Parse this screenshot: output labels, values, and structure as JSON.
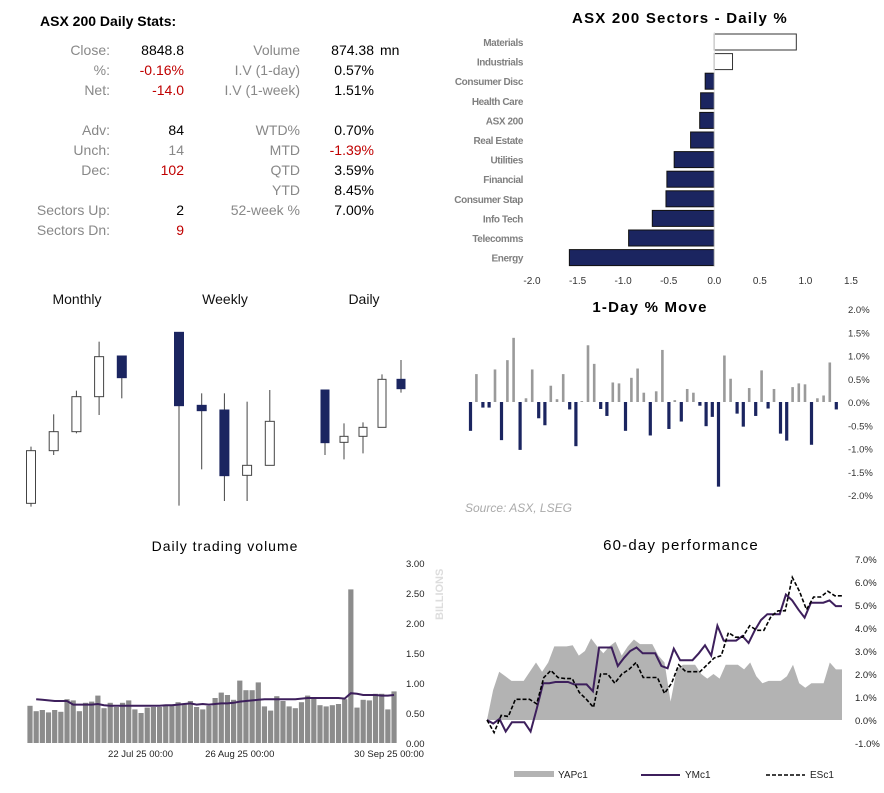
{
  "stats": {
    "title": "ASX 200 Daily Stats:",
    "left": [
      {
        "label": "Close:",
        "value": "8848.8",
        "tone": "normal"
      },
      {
        "label": "%:",
        "value": "-0.16%",
        "tone": "neg"
      },
      {
        "label": "Net:",
        "value": "-14.0",
        "tone": "neg"
      },
      {
        "label": "Adv:",
        "value": "84",
        "tone": "normal"
      },
      {
        "label": "Unch:",
        "value": "14",
        "tone": "muted"
      },
      {
        "label": "Dec:",
        "value": "102",
        "tone": "neg"
      },
      {
        "label": "Sectors Up:",
        "value": "2",
        "tone": "normal"
      },
      {
        "label": "Sectors Dn:",
        "value": "9",
        "tone": "neg"
      }
    ],
    "right": [
      {
        "label": "Volume",
        "value": "874.38",
        "unit": "mn",
        "tone": "normal"
      },
      {
        "label": "I.V (1-day)",
        "value": "0.57%",
        "tone": "normal"
      },
      {
        "label": "I.V (1-week)",
        "value": "1.51%",
        "tone": "normal"
      },
      {
        "label": "WTD%",
        "value": "0.70%",
        "tone": "normal"
      },
      {
        "label": "MTD",
        "value": "-1.39%",
        "tone": "neg"
      },
      {
        "label": "QTD",
        "value": "3.59%",
        "tone": "normal"
      },
      {
        "label": "YTD",
        "value": "8.45%",
        "tone": "normal"
      },
      {
        "label": "52-week %",
        "value": "7.00%",
        "tone": "normal"
      }
    ]
  },
  "colors": {
    "navy": "#1b2560",
    "grey": "#9a9a9a",
    "area": "#b3b3b3",
    "purple": "#3d1f5c",
    "neg": "#c00000"
  },
  "chart_data": [
    {
      "type": "bar",
      "orientation": "horizontal",
      "title": "ASX 200 Sectors - Daily %",
      "categories": [
        "Materials",
        "Industrials",
        "Consumer Disc",
        "Health Care",
        "ASX 200",
        "Real Estate",
        "Utilities",
        "Financial",
        "Consumer Stap",
        "Info Tech",
        "Telecomms",
        "Energy"
      ],
      "values": [
        0.9,
        0.2,
        -0.1,
        -0.15,
        -0.16,
        -0.26,
        -0.44,
        -0.52,
        -0.53,
        -0.68,
        -0.94,
        -1.59
      ],
      "xlim": [
        -2.0,
        1.5
      ],
      "xticks": [
        "-2.0",
        "-1.5",
        "-1.0",
        "-0.5",
        "0.0",
        "0.5",
        "1.0",
        "1.5"
      ],
      "grid": false
    },
    {
      "type": "candlestick",
      "panels": [
        {
          "title": "Monthly",
          "candles": [
            {
              "o": 30,
              "h": 200,
              "l": 20,
              "c": 188
            },
            {
              "o": 188,
              "h": 297,
              "l": 175,
              "c": 245
            },
            {
              "o": 245,
              "h": 368,
              "l": 240,
              "c": 350
            },
            {
              "o": 350,
              "h": 515,
              "l": 295,
              "c": 470
            },
            {
              "o": 472,
              "h": 472,
              "l": 345,
              "c": 407
            }
          ]
        },
        {
          "title": "Weekly",
          "candles": [
            {
              "o": 543,
              "h": 543,
              "l": 23,
              "c": 323
            },
            {
              "o": 324,
              "h": 360,
              "l": 132,
              "c": 308
            },
            {
              "o": 310,
              "h": 360,
              "l": 37,
              "c": 113
            },
            {
              "o": 114,
              "h": 335,
              "l": 37,
              "c": 144
            },
            {
              "o": 144,
              "h": 370,
              "l": 144,
              "c": 276
            }
          ]
        },
        {
          "title": "Daily",
          "candles": [
            {
              "o": 370,
              "h": 370,
              "l": 175,
              "c": 212
            },
            {
              "o": 213,
              "h": 270,
              "l": 162,
              "c": 231
            },
            {
              "o": 231,
              "h": 273,
              "l": 180,
              "c": 258
            },
            {
              "o": 258,
              "h": 417,
              "l": 258,
              "c": 402
            },
            {
              "o": 402,
              "h": 460,
              "l": 362,
              "c": 374
            }
          ]
        }
      ]
    },
    {
      "type": "bar",
      "title": "1-Day % Move",
      "values": [
        -0.62,
        0.6,
        -0.12,
        -0.12,
        0.7,
        -0.82,
        0.9,
        1.38,
        -1.03,
        0.08,
        0.7,
        -0.35,
        -0.5,
        0.35,
        0.06,
        0.6,
        -0.16,
        -0.95,
        0.02,
        1.22,
        0.82,
        -0.15,
        -0.3,
        0.42,
        0.4,
        -0.62,
        0.52,
        0.72,
        0.2,
        -0.72,
        0.23,
        1.12,
        -0.58,
        0.04,
        -0.42,
        0.28,
        0.2,
        -0.08,
        -0.52,
        -0.32,
        -1.82,
        1.0,
        0.5,
        -0.25,
        -0.53,
        0.3,
        -0.3,
        0.68,
        -0.14,
        0.28,
        -0.68,
        -0.83,
        0.32,
        0.4,
        0.38,
        -0.92,
        0.08,
        0.14,
        0.85,
        -0.16
      ],
      "ylim": [
        -2.0,
        2.0
      ],
      "yticks": [
        "2.0%",
        "1.5%",
        "1.0%",
        "0.5%",
        "0.0%",
        "-0.5%",
        "-1.0%",
        "-1.5%",
        "-2.0%"
      ],
      "source": "Source: ASX, LSEG"
    },
    {
      "type": "bar+line",
      "title": "Daily trading volume",
      "ylabel": "BILLIONS",
      "ylim": [
        0,
        3
      ],
      "yticks": [
        "3.00",
        "2.50",
        "2.00",
        "1.50",
        "1.00",
        "0.50",
        "0.00"
      ],
      "xticks": [
        {
          "label": "22 Jul 25 00:00",
          "index": 9
        },
        {
          "label": "26 Aug 25 00:00",
          "index": 34
        },
        {
          "label": "30 Sep 25 00:00",
          "index": 59
        }
      ],
      "bars": [
        0.62,
        0.53,
        0.55,
        0.51,
        0.55,
        0.52,
        0.73,
        0.71,
        0.53,
        0.67,
        0.69,
        0.79,
        0.58,
        0.67,
        0.6,
        0.67,
        0.71,
        0.56,
        0.5,
        0.59,
        0.6,
        0.6,
        0.62,
        0.63,
        0.68,
        0.64,
        0.7,
        0.6,
        0.56,
        0.62,
        0.75,
        0.84,
        0.8,
        0.72,
        1.04,
        0.88,
        0.88,
        1.01,
        0.61,
        0.54,
        0.78,
        0.7,
        0.61,
        0.58,
        0.68,
        0.79,
        0.75,
        0.63,
        0.61,
        0.63,
        0.65,
        0.73,
        2.56,
        0.59,
        0.72,
        0.71,
        0.82,
        0.82,
        0.56,
        0.86
      ],
      "line": [
        null,
        0.73,
        0.72,
        0.71,
        0.7,
        0.7,
        0.7,
        0.64,
        0.64,
        0.64,
        0.64,
        0.65,
        0.63,
        0.62,
        0.62,
        0.62,
        0.62,
        0.62,
        0.62,
        0.62,
        0.62,
        0.62,
        0.63,
        0.63,
        0.64,
        0.65,
        0.66,
        0.64,
        0.65,
        0.64,
        0.65,
        0.66,
        0.66,
        0.67,
        0.69,
        0.7,
        0.71,
        0.72,
        0.73,
        0.73,
        0.73,
        0.73,
        0.73,
        0.73,
        0.74,
        0.75,
        0.75,
        0.75,
        0.75,
        0.75,
        0.75,
        0.74,
        0.83,
        0.82,
        0.8,
        0.8,
        0.8,
        0.79,
        0.79,
        0.8
      ]
    },
    {
      "type": "area+line",
      "title": "60-day performance",
      "ylim": [
        -1.0,
        7.0
      ],
      "yticks": [
        "7.0%",
        "6.0%",
        "5.0%",
        "4.0%",
        "3.0%",
        "2.0%",
        "1.0%",
        "0.0%",
        "-1.0%"
      ],
      "series": [
        {
          "name": "YAPc1",
          "style": "area",
          "values": [
            0,
            1.3,
            2.1,
            1.9,
            1.7,
            1.7,
            1.7,
            2.1,
            2.5,
            2.1,
            2.5,
            3.2,
            3.2,
            3.2,
            3.25,
            2.8,
            3.0,
            3.55,
            3.2,
            2.9,
            3.2,
            3.4,
            2.8,
            3.2,
            3.5,
            3.3,
            3.3,
            3.3,
            2.8,
            2.5,
            0.8,
            2.2,
            2.4,
            2.4,
            2.4,
            2.0,
            1.8,
            2.0,
            1.8,
            2.4,
            2.4,
            2.4,
            2.2,
            2.5,
            1.9,
            1.6,
            1.7,
            1.7,
            1.7,
            1.9,
            2.4,
            1.6,
            1.4,
            1.6,
            1.6,
            1.6,
            2.5,
            2.2,
            2.2
          ]
        },
        {
          "name": "YMc1",
          "style": "line",
          "values": [
            0,
            -0.15,
            0.05,
            -0.5,
            -0.1,
            -0.1,
            -0.1,
            -0.5,
            0.5,
            1.6,
            1.6,
            1.65,
            1.65,
            1.65,
            1.55,
            1.55,
            1.55,
            1.25,
            3.15,
            3.15,
            3.15,
            2.35,
            2.7,
            3.0,
            3.15,
            2.9,
            2.9,
            2.9,
            2.35,
            2.25,
            3.1,
            2.6,
            2.6,
            2.6,
            2.9,
            3.25,
            2.8,
            4.1,
            3.45,
            3.45,
            3.45,
            3.65,
            3.35,
            3.9,
            4.35,
            4.6,
            4.6,
            4.6,
            5.45,
            5.2,
            4.8,
            4.45,
            5.1,
            5.1,
            5.1,
            5.2,
            4.95,
            4.95
          ]
        },
        {
          "name": "ESc1",
          "style": "dashed",
          "values": [
            0,
            -0.55,
            0.2,
            0.15,
            0.9,
            0.9,
            0.9,
            0.7,
            1.85,
            2.15,
            1.85,
            1.8,
            1.8,
            1.2,
            0.9,
            0.55,
            2.0,
            2.0,
            1.6,
            2.0,
            2.2,
            2.5,
            1.85,
            1.85,
            1.85,
            1.15,
            1.6,
            2.4,
            2.1,
            2.1,
            2.1,
            2.4,
            2.7,
            2.8,
            3.8,
            3.6,
            3.6,
            4.1,
            3.9,
            3.9,
            4.5,
            4.75,
            4.75,
            6.2,
            5.6,
            4.8,
            5.35,
            5.35,
            5.6,
            5.4,
            5.4
          ]
        }
      ],
      "legend": "bottom"
    }
  ]
}
